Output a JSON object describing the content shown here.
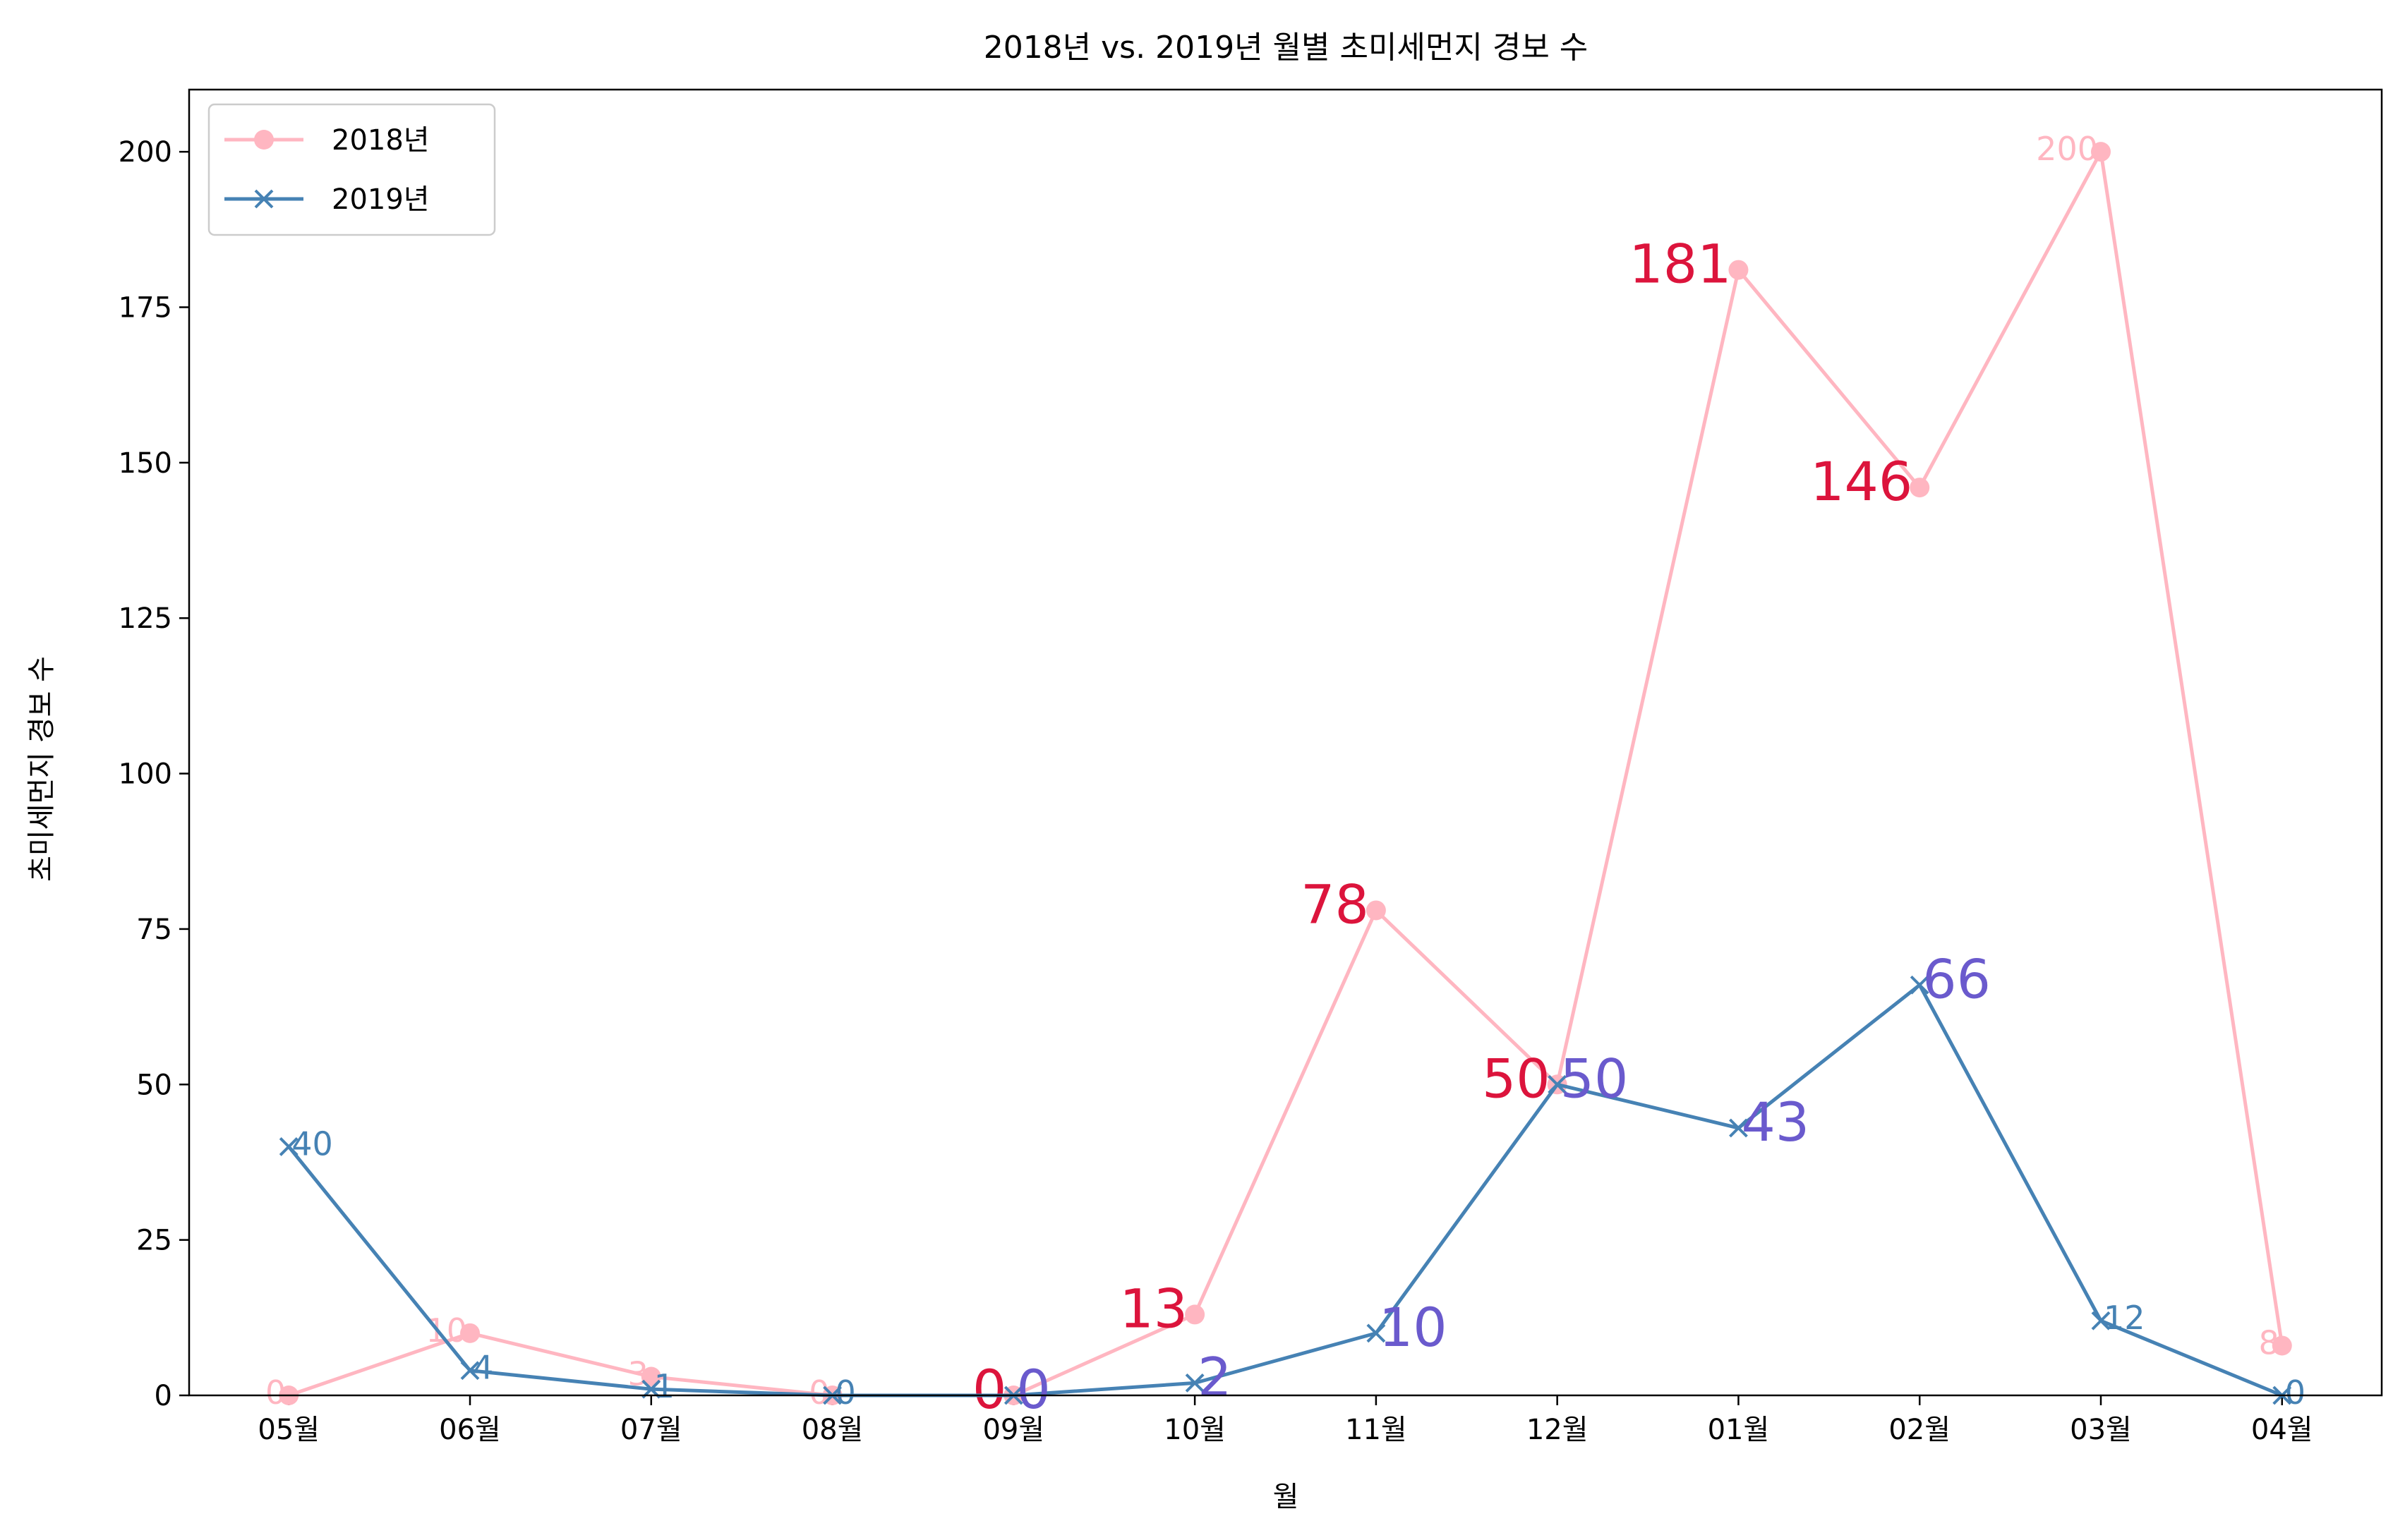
{
  "chart_data": {
    "type": "line",
    "title": "2018년 vs. 2019년 월별 초미세먼지 경보 수",
    "xlabel": "월",
    "ylabel": "초미세먼지 경보 수",
    "categories": [
      "05월",
      "06월",
      "07월",
      "08월",
      "09월",
      "10월",
      "11월",
      "12월",
      "01월",
      "02월",
      "03월",
      "04월"
    ],
    "ylim": [
      0,
      210
    ],
    "yticks": [
      0,
      25,
      50,
      75,
      100,
      125,
      150,
      175,
      200
    ],
    "grid": false,
    "legend_position": "top-left",
    "series": [
      {
        "name": "2018년",
        "marker": "circle",
        "color": "#ffb6c1",
        "values": [
          0,
          10,
          3,
          0,
          0,
          13,
          78,
          50,
          181,
          146,
          200,
          8
        ],
        "highlight_color": "#dc143c",
        "highlighted": [
          false,
          false,
          false,
          false,
          true,
          true,
          true,
          true,
          true,
          true,
          false,
          false
        ]
      },
      {
        "name": "2019년",
        "marker": "x",
        "color": "#4682b4",
        "values": [
          40,
          4,
          1,
          0,
          0,
          2,
          10,
          50,
          43,
          66,
          12,
          0
        ],
        "highlight_color": "#6a5acd",
        "highlighted": [
          false,
          false,
          false,
          false,
          true,
          true,
          true,
          true,
          true,
          true,
          false,
          false
        ]
      }
    ]
  }
}
